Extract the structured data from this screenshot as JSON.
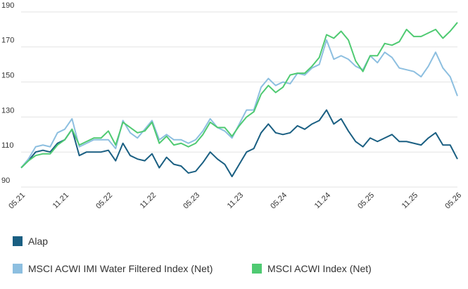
{
  "chart_data": {
    "type": "line",
    "categories": [
      "05.21",
      null,
      null,
      null,
      null,
      null,
      "11.21",
      null,
      null,
      null,
      null,
      null,
      "05.22",
      null,
      null,
      null,
      null,
      null,
      "11.22",
      null,
      null,
      null,
      null,
      null,
      "05.23",
      null,
      null,
      null,
      null,
      null,
      "11.23",
      null,
      null,
      null,
      null,
      null,
      "05.24",
      null,
      null,
      null,
      null,
      null,
      "11.24",
      null,
      null,
      null,
      null,
      null,
      "05.25",
      null,
      null,
      null,
      null,
      null,
      "11.25",
      null,
      null,
      null,
      null,
      null,
      "05.26"
    ],
    "series": [
      {
        "name": "Alap",
        "color": "#1a5f82",
        "values": [
          101,
          105,
          110,
          111,
          110,
          115,
          117,
          123,
          108,
          110,
          110,
          110,
          111,
          105,
          115,
          108,
          106,
          105,
          109,
          101,
          107,
          103,
          102,
          98,
          99,
          104,
          110,
          106,
          103,
          96,
          103,
          110,
          112,
          121,
          126,
          121,
          120,
          121,
          125,
          123,
          126,
          128,
          134,
          126,
          129,
          122,
          116,
          113,
          118,
          116,
          118,
          120,
          116,
          116,
          115,
          114,
          118,
          121,
          114,
          114,
          106
        ]
      },
      {
        "name": "MSCI ACWI IMI Water Filtered Index (Net)",
        "color": "#8dbfe0",
        "values": [
          101,
          106,
          113,
          114,
          113,
          121,
          123,
          129,
          113,
          115,
          117,
          117,
          117,
          112,
          128,
          121,
          118,
          123,
          128,
          117,
          120,
          117,
          117,
          115,
          117,
          122,
          129,
          124,
          122,
          118,
          126,
          134,
          134,
          147,
          152,
          148,
          150,
          149,
          155,
          154,
          158,
          160,
          174,
          163,
          165,
          163,
          159,
          157,
          165,
          161,
          167,
          164,
          158,
          157,
          156,
          153,
          159,
          167,
          158,
          153,
          142
        ]
      },
      {
        "name": "MSCI ACWI Index (Net)",
        "color": "#4fca72",
        "values": [
          101,
          105,
          108,
          109,
          109,
          114,
          117,
          123,
          114,
          116,
          118,
          118,
          122,
          114,
          127,
          124,
          121,
          122,
          127,
          115,
          119,
          114,
          115,
          113,
          115,
          120,
          127,
          124,
          124,
          119,
          125,
          130,
          133,
          143,
          148,
          144,
          147,
          154,
          155,
          155,
          159,
          164,
          177,
          175,
          179,
          174,
          162,
          156,
          165,
          165,
          172,
          171,
          173,
          180,
          176,
          176,
          178,
          180,
          175,
          179,
          184
        ]
      }
    ],
    "ylim": [
      90,
      190
    ],
    "yticks": [
      90,
      110,
      130,
      150,
      170,
      190
    ],
    "grid": true
  }
}
